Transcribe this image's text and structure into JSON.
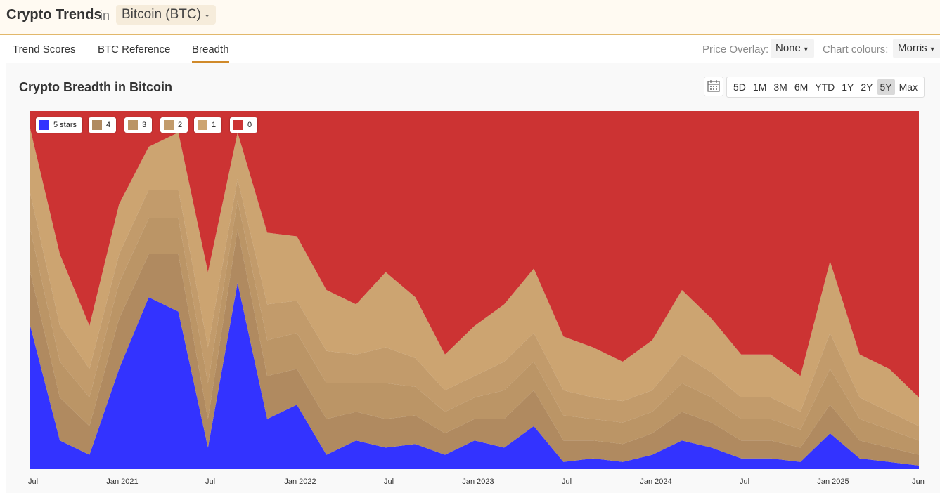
{
  "header": {
    "app_title": "Crypto Trends",
    "in_word": "in",
    "asset": "Bitcoin (BTC)"
  },
  "tabs": [
    {
      "label": "Trend Scores",
      "active": false
    },
    {
      "label": "BTC Reference",
      "active": false
    },
    {
      "label": "Breadth",
      "active": true
    }
  ],
  "controls": {
    "price_overlay_label": "Price Overlay:",
    "price_overlay_value": "None",
    "chart_colours_label": "Chart colours:",
    "chart_colours_value": "Morris"
  },
  "range_buttons": [
    {
      "label": "5D",
      "active": false
    },
    {
      "label": "1M",
      "active": false
    },
    {
      "label": "3M",
      "active": false
    },
    {
      "label": "6M",
      "active": false
    },
    {
      "label": "YTD",
      "active": false
    },
    {
      "label": "1Y",
      "active": false
    },
    {
      "label": "2Y",
      "active": false
    },
    {
      "label": "5Y",
      "active": true
    },
    {
      "label": "Max",
      "active": false
    }
  ],
  "colors": {
    "accent": "#d08a2a",
    "stars5": "#3333ff",
    "stars4": "#b08a60",
    "stars3": "#bb9566",
    "stars2": "#c29b6b",
    "stars1": "#cca471",
    "stars0": "#cc3333"
  },
  "chart_data": {
    "type": "area",
    "stacked": true,
    "percent": true,
    "title": "Crypto Breadth in Bitcoin",
    "ylim": [
      0,
      100
    ],
    "x_tick_labels": [
      "Jul",
      "Jan 2021",
      "Jul",
      "Jan 2022",
      "Jul",
      "Jan 2023",
      "Jul",
      "Jan 2024",
      "Jul",
      "Jan 2025",
      "Jun"
    ],
    "x": [
      "2020-07",
      "2020-09",
      "2020-11",
      "2021-01",
      "2021-03",
      "2021-05",
      "2021-07",
      "2021-09",
      "2021-11",
      "2022-01",
      "2022-03",
      "2022-05",
      "2022-07",
      "2022-09",
      "2022-11",
      "2023-01",
      "2023-03",
      "2023-05",
      "2023-07",
      "2023-09",
      "2023-11",
      "2024-01",
      "2024-03",
      "2024-05",
      "2024-07",
      "2024-09",
      "2024-11",
      "2025-01",
      "2025-03",
      "2025-05",
      "2025-06"
    ],
    "series": [
      {
        "name": "5 stars",
        "values": [
          40,
          8,
          4,
          28,
          48,
          44,
          6,
          52,
          14,
          18,
          4,
          8,
          6,
          7,
          4,
          8,
          6,
          12,
          2,
          3,
          2,
          4,
          8,
          6,
          3,
          3,
          2,
          10,
          3,
          2,
          1
        ]
      },
      {
        "name": "4",
        "values": [
          15,
          12,
          8,
          14,
          12,
          16,
          8,
          15,
          12,
          10,
          10,
          8,
          8,
          8,
          6,
          6,
          8,
          10,
          6,
          5,
          5,
          6,
          8,
          7,
          5,
          5,
          4,
          8,
          5,
          4,
          3
        ]
      },
      {
        "name": "3",
        "values": [
          12,
          10,
          8,
          10,
          10,
          10,
          10,
          8,
          10,
          10,
          10,
          8,
          10,
          8,
          6,
          6,
          8,
          8,
          7,
          6,
          6,
          6,
          8,
          7,
          6,
          6,
          5,
          10,
          6,
          5,
          4
        ]
      },
      {
        "name": "2",
        "values": [
          10,
          10,
          8,
          8,
          8,
          8,
          10,
          6,
          10,
          9,
          9,
          8,
          10,
          8,
          6,
          6,
          8,
          8,
          7,
          6,
          6,
          6,
          8,
          7,
          6,
          6,
          5,
          10,
          6,
          5,
          4
        ]
      },
      {
        "name": "1",
        "values": [
          18,
          20,
          12,
          14,
          12,
          16,
          21,
          13,
          20,
          18,
          17,
          14,
          21,
          17,
          10,
          14,
          16,
          18,
          15,
          14,
          11,
          14,
          18,
          15,
          12,
          12,
          10,
          20,
          12,
          12,
          8
        ]
      },
      {
        "name": "0",
        "values": [
          5,
          40,
          60,
          26,
          10,
          6,
          45,
          6,
          34,
          35,
          50,
          54,
          45,
          52,
          68,
          60,
          54,
          44,
          63,
          66,
          70,
          64,
          50,
          58,
          68,
          68,
          74,
          42,
          68,
          72,
          80
        ]
      }
    ],
    "legend_position": "top-left",
    "grid": false
  }
}
